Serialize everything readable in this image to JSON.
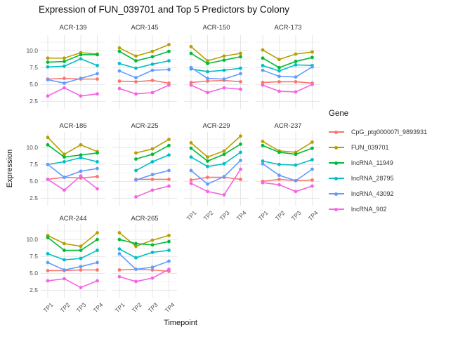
{
  "title": "Expression of FUN_039701 and Top 5 Predictors by Colony",
  "x_axis": {
    "title": "Timepoint",
    "ticks": [
      "TP1",
      "TP2",
      "TP3",
      "TP4"
    ]
  },
  "y_axis": {
    "title": "Expression",
    "ticks": [
      "10.0",
      "7.5",
      "5.0",
      "2.5"
    ]
  },
  "legend": {
    "title": "Gene"
  },
  "chart_data": {
    "type": "line",
    "x": [
      "TP1",
      "TP2",
      "TP3",
      "TP4"
    ],
    "ylim": [
      1.4,
      12.3
    ],
    "y_major_gridlines": [
      2.5,
      5.0,
      7.5,
      10.0
    ],
    "y_minor_gridlines": [
      3.75,
      6.25,
      8.75,
      11.25
    ],
    "grid": true,
    "legend_position": "right",
    "series": [
      {
        "name": "CpG_ptg000007l_9893931",
        "color": "#F8766D"
      },
      {
        "name": "FUN_039701",
        "color": "#B79F00"
      },
      {
        "name": "lncRNA_11949",
        "color": "#00BA38"
      },
      {
        "name": "lncRNA_28795",
        "color": "#00BFC4"
      },
      {
        "name": "lncRNA_43092",
        "color": "#619CFF"
      },
      {
        "name": "lncRNA_902",
        "color": "#F564E3"
      }
    ],
    "facets": [
      {
        "colony": "ACR-139",
        "values": [
          [
            5.8,
            5.9,
            5.8,
            5.8
          ],
          [
            8.9,
            8.9,
            9.7,
            9.5
          ],
          [
            8.3,
            8.4,
            9.4,
            9.4
          ],
          [
            7.6,
            7.7,
            8.8,
            7.8
          ],
          [
            5.7,
            5.2,
            5.9,
            6.6
          ],
          [
            3.3,
            4.5,
            3.3,
            3.6
          ]
        ]
      },
      {
        "colony": "ACR-145",
        "values": [
          [
            5.5,
            5.4,
            5.6,
            5.2
          ],
          [
            10.4,
            9.2,
            9.9,
            10.9
          ],
          [
            9.9,
            8.5,
            9.1,
            9.9
          ],
          [
            8.1,
            7.4,
            8.0,
            8.5
          ],
          [
            7.0,
            6.0,
            7.1,
            7.2
          ],
          [
            4.4,
            3.6,
            3.8,
            4.9
          ]
        ]
      },
      {
        "colony": "ACR-150",
        "values": [
          [
            5.3,
            5.5,
            5.6,
            5.4
          ],
          [
            10.6,
            8.5,
            9.2,
            9.6
          ],
          [
            9.6,
            8.1,
            8.6,
            9.1
          ],
          [
            7.3,
            6.9,
            7.1,
            7.4
          ],
          [
            7.5,
            5.9,
            5.8,
            6.6
          ],
          [
            4.9,
            3.8,
            4.5,
            4.3
          ]
        ]
      },
      {
        "colony": "ACR-173",
        "values": [
          [
            5.3,
            5.4,
            5.4,
            5.2
          ],
          [
            10.1,
            8.7,
            9.5,
            9.8
          ],
          [
            8.9,
            7.5,
            8.4,
            9.0
          ],
          [
            7.8,
            7.0,
            7.9,
            7.8
          ],
          [
            7.1,
            6.2,
            6.1,
            7.6
          ],
          [
            4.9,
            4.0,
            3.9,
            5.0
          ]
        ]
      },
      {
        "colony": "ACR-186",
        "values": [
          [
            5.3,
            5.6,
            5.5,
            5.7
          ],
          [
            11.5,
            9.0,
            10.4,
            9.4
          ],
          [
            10.4,
            8.6,
            8.9,
            9.2
          ],
          [
            7.5,
            7.9,
            8.5,
            7.9
          ],
          [
            7.5,
            5.6,
            6.5,
            6.9
          ],
          [
            5.3,
            3.7,
            5.8,
            3.9
          ]
        ]
      },
      {
        "colony": "ACR-225",
        "values": [
          [
            null,
            5.3,
            5.3,
            5.3
          ],
          [
            null,
            9.2,
            9.8,
            11.2
          ],
          [
            null,
            8.3,
            9.0,
            10.3
          ],
          [
            null,
            6.6,
            7.9,
            8.9
          ],
          [
            null,
            5.2,
            6.0,
            6.6
          ],
          [
            null,
            2.7,
            3.7,
            4.3
          ]
        ]
      },
      {
        "colony": "ACR-229",
        "values": [
          [
            5.2,
            5.6,
            5.6,
            5.3
          ],
          [
            10.7,
            8.6,
            9.5,
            11.7
          ],
          [
            9.9,
            8.0,
            9.0,
            10.5
          ],
          [
            8.6,
            7.2,
            7.6,
            9.3
          ],
          [
            6.6,
            4.6,
            5.7,
            8.1
          ],
          [
            4.7,
            3.5,
            3.0,
            6.8
          ]
        ]
      },
      {
        "colony": "ACR-237",
        "values": [
          [
            5.0,
            5.3,
            5.1,
            5.2
          ],
          [
            10.9,
            9.5,
            9.3,
            10.8
          ],
          [
            10.3,
            9.3,
            9.0,
            9.9
          ],
          [
            8.0,
            7.5,
            7.4,
            8.2
          ],
          [
            7.6,
            5.9,
            5.1,
            6.8
          ],
          [
            4.8,
            4.5,
            3.5,
            4.3
          ]
        ]
      },
      {
        "colony": "ACR-244",
        "values": [
          [
            5.4,
            5.4,
            5.5,
            5.5
          ],
          [
            10.6,
            9.4,
            9.0,
            11.0
          ],
          [
            10.3,
            8.4,
            8.4,
            10.0
          ],
          [
            7.9,
            7.0,
            7.2,
            8.4
          ],
          [
            6.6,
            5.5,
            6.0,
            6.6
          ],
          [
            3.9,
            4.2,
            2.9,
            3.9
          ]
        ]
      },
      {
        "colony": "ACR-265",
        "values": [
          [
            5.5,
            5.6,
            5.5,
            5.3
          ],
          [
            11.0,
            9.0,
            9.9,
            10.6
          ],
          [
            10.0,
            9.4,
            9.2,
            9.7
          ],
          [
            8.6,
            7.3,
            8.1,
            8.4
          ],
          [
            7.9,
            5.6,
            5.9,
            6.8
          ],
          [
            4.5,
            3.8,
            4.3,
            5.6
          ]
        ]
      }
    ]
  }
}
